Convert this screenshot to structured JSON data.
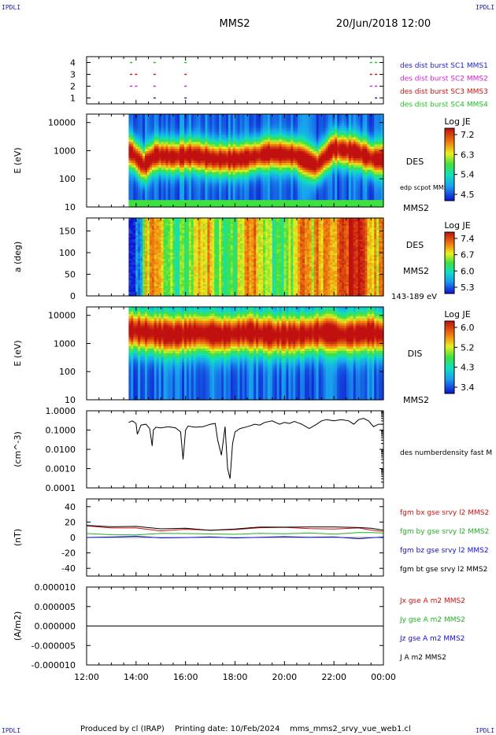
{
  "header": {
    "corner_logo": "IPDLI",
    "spacecraft": "MMS2",
    "date_time": "20/Jun/2018 12:00"
  },
  "footer": {
    "produced_by": "Produced by cl (IRAP)",
    "printing_date": "Printing date: 10/Feb/2024",
    "filename": "mms_mms2_srvy_vue_web1.cl"
  },
  "time_axis": {
    "ticks": [
      "12:00",
      "14:00",
      "16:00",
      "18:00",
      "20:00",
      "22:00",
      "00:00"
    ],
    "tick_hours": [
      12,
      14,
      16,
      18,
      20,
      22,
      24
    ],
    "range_hours": [
      12,
      24
    ]
  },
  "colors": {
    "sc1": "#1c1cc8",
    "sc2": "#d020d0",
    "sc3": "#d01010",
    "sc4": "#20c020",
    "bx": "#d01010",
    "by": "#20b020",
    "bz": "#1010d0",
    "bt": "#000000"
  },
  "panels": {
    "burst": {
      "yticks": [
        "1",
        "2",
        "3",
        "4"
      ],
      "legend": [
        {
          "text": "des dist burst SC1 MMS1",
          "color": "#1c1cc8"
        },
        {
          "text": "des dist burst SC2 MMS2",
          "color": "#d020d0"
        },
        {
          "text": "des dist burst SC3 MMS3",
          "color": "#d01010"
        },
        {
          "text": "des dist burst SC4 MMS4",
          "color": "#20c020"
        }
      ]
    },
    "des_energy": {
      "ylabel": "E (eV)",
      "yticks": [
        "10",
        "100",
        "1000",
        "10000"
      ],
      "instrument": "DES",
      "note": "edp scpot MMS2",
      "spacecraft": "MMS2",
      "colorbar_title": "Log JE",
      "colorbar_ticks": [
        "7.2",
        "6.3",
        "5.4",
        "4.5"
      ]
    },
    "des_pitch": {
      "ylabel": "a (deg)",
      "yticks": [
        "0",
        "50",
        "100",
        "150"
      ],
      "instrument": "DES",
      "spacecraft": "MMS2",
      "energy_band": "143-189 eV",
      "colorbar_title": "Log JE",
      "colorbar_ticks": [
        "7.4",
        "6.7",
        "6.0",
        "5.3"
      ]
    },
    "dis_energy": {
      "ylabel": "E (eV)",
      "yticks": [
        "10",
        "100",
        "1000",
        "10000"
      ],
      "instrument": "DIS",
      "spacecraft": "MMS2",
      "colorbar_title": "Log JE",
      "colorbar_ticks": [
        "6.0",
        "5.2",
        "4.3",
        "3.4"
      ]
    },
    "density": {
      "ylabel": "(cm^-3)",
      "yticks": [
        "0.0001",
        "0.0010",
        "0.0100",
        "0.1000",
        "1.0000"
      ],
      "legend": "des numberdensity fast M"
    },
    "bfield": {
      "ylabel": "(nT)",
      "yticks": [
        "-40",
        "-20",
        "0",
        "20",
        "40"
      ],
      "legend": [
        {
          "text": "fgm bx gse srvy l2 MMS2",
          "color": "#d01010"
        },
        {
          "text": "fgm by gse srvy l2 MMS2",
          "color": "#20b020"
        },
        {
          "text": "fgm bz gse srvy l2 MMS2",
          "color": "#1010d0"
        },
        {
          "text": "fgm bt gse srvy l2 MMS2",
          "color": "#000000"
        }
      ]
    },
    "current": {
      "ylabel": "(A/m2)",
      "yticks": [
        "-0.000010",
        "-0.000005",
        "0.000000",
        "0.000005",
        "0.000010"
      ],
      "legend": [
        {
          "text": "Jx gse A m2 MMS2",
          "color": "#d01010"
        },
        {
          "text": "Jy gse A m2 MMS2",
          "color": "#20b020"
        },
        {
          "text": "Jz gse A m2 MMS2",
          "color": "#1010d0"
        },
        {
          "text": "J A m2 MMS2",
          "color": "#000000"
        }
      ]
    }
  },
  "chart_data": [
    {
      "type": "scatter",
      "name": "burst availability",
      "x_unit": "hour",
      "series": [
        {
          "name": "des dist burst SC1 MMS1",
          "y": 1,
          "x": [
            14.75,
            16.0,
            23.7
          ]
        },
        {
          "name": "des dist burst SC2 MMS2",
          "y": 2,
          "x": [
            13.8,
            14.0,
            14.75,
            16.0,
            23.5,
            23.7
          ]
        },
        {
          "name": "des dist burst SC3 MMS3",
          "y": 3,
          "x": [
            13.8,
            14.0,
            14.75,
            16.0,
            23.5,
            23.7
          ]
        },
        {
          "name": "des dist burst SC4 MMS4",
          "y": 4,
          "x": [
            13.8,
            14.75,
            16.0,
            23.5,
            23.7
          ]
        }
      ],
      "ylim": [
        0.5,
        4.5
      ]
    },
    {
      "type": "heatmap",
      "name": "DES energy spectrogram",
      "xlim": [
        12,
        24
      ],
      "ylim_log10": [
        1,
        4.3
      ],
      "data_start_hour": 13.7,
      "colorbar": [
        4.5,
        7.2
      ],
      "peak_energy_eV": [
        {
          "x": 13.8,
          "e": 900
        },
        {
          "x": 14.3,
          "e": 300
        },
        {
          "x": 14.8,
          "e": 700
        },
        {
          "x": 15.5,
          "e": 600
        },
        {
          "x": 16.3,
          "e": 700
        },
        {
          "x": 17.2,
          "e": 500
        },
        {
          "x": 18.2,
          "e": 500
        },
        {
          "x": 19.4,
          "e": 800
        },
        {
          "x": 20.4,
          "e": 700
        },
        {
          "x": 21.3,
          "e": 300
        },
        {
          "x": 22.0,
          "e": 1200
        },
        {
          "x": 22.9,
          "e": 900
        },
        {
          "x": 23.6,
          "e": 500
        },
        {
          "x": 24,
          "e": 500
        }
      ]
    },
    {
      "type": "heatmap",
      "name": "DES pitch angle 143-189 eV",
      "xlim": [
        12,
        24
      ],
      "ylim": [
        0,
        180
      ],
      "data_start_hour": 13.7,
      "colorbar": [
        5.3,
        7.4
      ]
    },
    {
      "type": "heatmap",
      "name": "DIS energy spectrogram",
      "xlim": [
        12,
        24
      ],
      "ylim_log10": [
        1,
        4.3
      ],
      "data_start_hour": 13.7,
      "colorbar": [
        3.4,
        6.0
      ],
      "peak_energy_eV": [
        {
          "x": 13.8,
          "e": 3000
        },
        {
          "x": 14.5,
          "e": 2500
        },
        {
          "x": 15.5,
          "e": 2000
        },
        {
          "x": 16.5,
          "e": 2500
        },
        {
          "x": 17.5,
          "e": 2000
        },
        {
          "x": 18.5,
          "e": 2500
        },
        {
          "x": 19.5,
          "e": 2000
        },
        {
          "x": 20.5,
          "e": 2000
        },
        {
          "x": 21.5,
          "e": 2500
        },
        {
          "x": 22.5,
          "e": 2000
        },
        {
          "x": 23.5,
          "e": 2500
        },
        {
          "x": 24,
          "e": 2000
        }
      ]
    },
    {
      "type": "line",
      "name": "des numberdensity fast M",
      "ylog": true,
      "ylim": [
        0.0001,
        1.0
      ],
      "x": [
        13.7,
        13.85,
        14.0,
        14.05,
        14.2,
        14.4,
        14.55,
        14.65,
        14.7,
        14.8,
        15.0,
        15.3,
        15.6,
        15.8,
        15.9,
        16.0,
        16.1,
        16.4,
        16.7,
        16.9,
        17.0,
        17.2,
        17.3,
        17.45,
        17.6,
        17.7,
        17.8,
        17.9,
        18.0,
        18.2,
        18.5,
        18.8,
        19.0,
        19.2,
        19.5,
        19.8,
        20.0,
        20.2,
        20.4,
        20.7,
        21.0,
        21.3,
        21.5,
        21.7,
        22.0,
        22.3,
        22.6,
        22.8,
        23.0,
        23.2,
        23.4,
        23.6,
        23.8,
        24.0
      ],
      "y": [
        0.25,
        0.3,
        0.22,
        0.06,
        0.18,
        0.2,
        0.12,
        0.015,
        0.1,
        0.14,
        0.13,
        0.15,
        0.13,
        0.08,
        0.003,
        0.1,
        0.16,
        0.14,
        0.15,
        0.18,
        0.2,
        0.22,
        0.03,
        0.005,
        0.15,
        0.001,
        0.0003,
        0.02,
        0.08,
        0.12,
        0.15,
        0.2,
        0.18,
        0.25,
        0.3,
        0.2,
        0.25,
        0.22,
        0.28,
        0.2,
        0.12,
        0.2,
        0.3,
        0.35,
        0.3,
        0.35,
        0.3,
        0.2,
        0.35,
        0.4,
        0.3,
        0.15,
        0.2,
        0.2
      ]
    },
    {
      "type": "line",
      "name": "fgm B gse",
      "ylim": [
        -50,
        50
      ],
      "x": [
        12.0,
        13.0,
        14.0,
        15.0,
        16.0,
        17.0,
        18.0,
        19.0,
        20.0,
        21.0,
        22.0,
        23.0,
        23.5,
        24.0
      ],
      "series": [
        {
          "name": "fgm bx gse srvy l2 MMS2",
          "values": [
            15,
            13,
            13,
            9,
            11,
            9,
            10,
            12,
            13,
            12,
            11,
            12,
            10,
            8
          ]
        },
        {
          "name": "fgm by gse srvy l2 MMS2",
          "values": [
            5,
            4,
            4,
            5,
            5,
            4,
            4,
            5,
            5,
            6,
            5,
            6,
            6,
            5
          ]
        },
        {
          "name": "fgm bz gse srvy l2 MMS2",
          "values": [
            0,
            0,
            1,
            0,
            0,
            1,
            0,
            0,
            1,
            0,
            0,
            -1,
            0,
            0
          ]
        },
        {
          "name": "fgm bt gse srvy l2 MMS2",
          "values": [
            16,
            14,
            14,
            11,
            12,
            10,
            11,
            13,
            14,
            14,
            13,
            13,
            12,
            10
          ]
        }
      ]
    },
    {
      "type": "line",
      "name": "J gse",
      "ylim": [
        -1e-05,
        1e-05
      ],
      "x": [
        12,
        24
      ],
      "series": [
        {
          "name": "J A m2 MMS2",
          "values": [
            0.0,
            0.0
          ]
        }
      ]
    }
  ]
}
